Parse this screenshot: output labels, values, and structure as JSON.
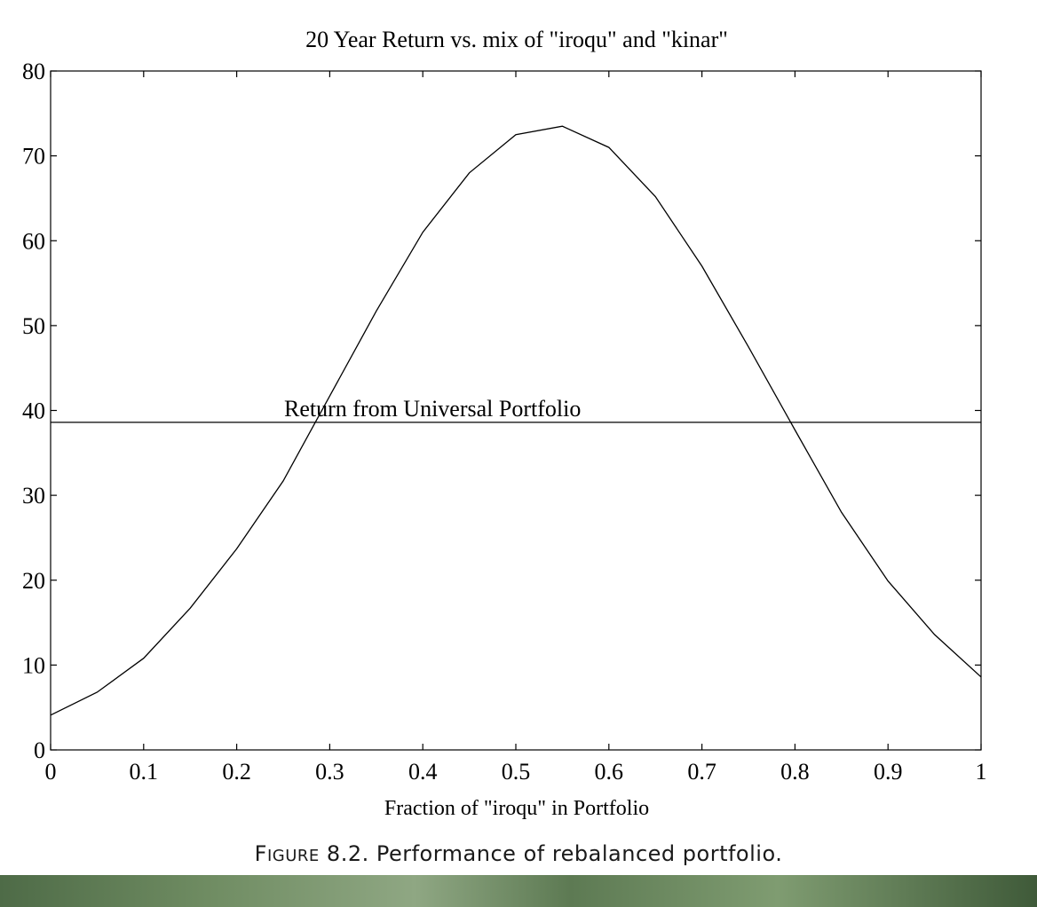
{
  "chart_data": {
    "type": "line",
    "title": "20 Year Return vs. mix of \"iroqu\" and \"kinar\"",
    "xlabel": "Fraction of \"iroqu\" in Portfolio",
    "ylabel": "",
    "xlim": [
      0,
      1
    ],
    "ylim": [
      0,
      80
    ],
    "x_ticks": [
      0,
      0.1,
      0.2,
      0.3,
      0.4,
      0.5,
      0.6,
      0.7,
      0.8,
      0.9,
      1
    ],
    "x_tick_labels": [
      "0",
      "0.1",
      "0.2",
      "0.3",
      "0.4",
      "0.5",
      "0.6",
      "0.7",
      "0.8",
      "0.9",
      "1"
    ],
    "y_ticks": [
      0,
      10,
      20,
      30,
      40,
      50,
      60,
      70,
      80
    ],
    "y_tick_labels": [
      "0",
      "10",
      "20",
      "30",
      "40",
      "50",
      "60",
      "70",
      "80"
    ],
    "grid": false,
    "series": [
      {
        "x": [
          0,
          0.05,
          0.1,
          0.15,
          0.2,
          0.25,
          0.3,
          0.35,
          0.4,
          0.45,
          0.5,
          0.55,
          0.6,
          0.65,
          0.7,
          0.75,
          0.8,
          0.85,
          0.9,
          0.95,
          1
        ],
        "values": [
          4.1,
          6.8,
          10.8,
          16.7,
          23.7,
          31.7,
          41.7,
          51.7,
          61.0,
          68.0,
          72.5,
          73.5,
          71.0,
          65.2,
          57.0,
          47.5,
          37.7,
          28.0,
          19.9,
          13.6,
          8.6
        ]
      }
    ],
    "reference_line": {
      "y": 38.6,
      "label": "Return from Universal Portfolio"
    },
    "colors": {
      "line": "#000000",
      "axis": "#000000"
    }
  },
  "caption": {
    "first_letter": "F",
    "rest_smallcaps": "igure",
    "text": "8.2. Performance of rebalanced portfolio."
  }
}
